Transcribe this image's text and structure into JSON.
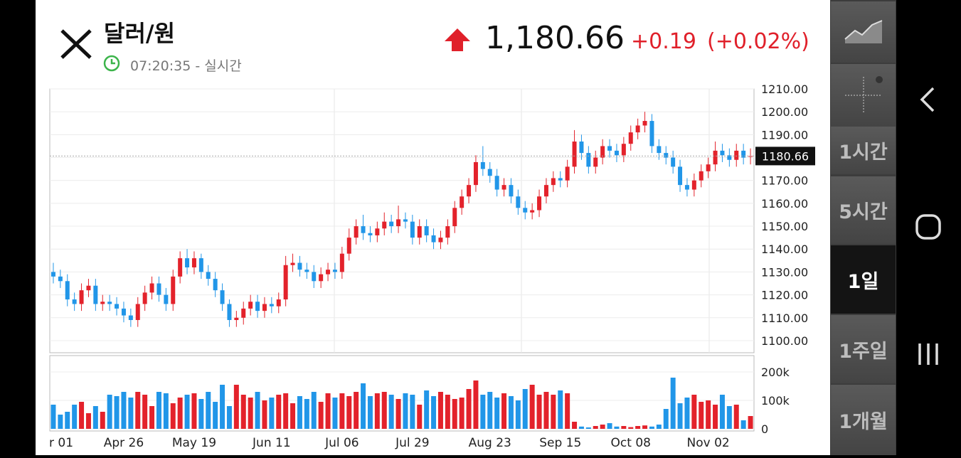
{
  "header": {
    "title": "달러/원",
    "time": "07:20:35 - 실시간",
    "price": "1,180.66",
    "change": "+0.19",
    "change_pct": "(+0.02%)"
  },
  "sidebar": {
    "items": [
      "1시간",
      "5시간",
      "1일",
      "1주일",
      "1개월"
    ],
    "selected_index": 2
  },
  "chart_data": [
    {
      "type": "candlestick",
      "up_color": "#e3222b",
      "down_color": "#2196e8",
      "grid": true,
      "categories": [
        "r 01",
        null,
        null,
        null,
        null,
        null,
        null,
        null,
        null,
        null,
        "Apr 26",
        null,
        null,
        null,
        null,
        null,
        null,
        null,
        null,
        null,
        "May 19",
        null,
        null,
        null,
        null,
        null,
        null,
        null,
        null,
        null,
        null,
        "Jun 11",
        null,
        null,
        null,
        null,
        null,
        null,
        null,
        null,
        null,
        "Jul 06",
        null,
        null,
        null,
        null,
        null,
        null,
        null,
        null,
        null,
        "Jul 29",
        null,
        null,
        null,
        null,
        null,
        null,
        null,
        null,
        null,
        null,
        "Aug 23",
        null,
        null,
        null,
        null,
        null,
        null,
        null,
        null,
        null,
        "Sep 15",
        null,
        null,
        null,
        null,
        null,
        null,
        null,
        null,
        null,
        "Oct 08",
        null,
        null,
        null,
        null,
        null,
        null,
        null,
        null,
        null,
        null,
        "Nov 02",
        null,
        null,
        null,
        null,
        null,
        null
      ],
      "open": [
        1130,
        1128,
        1126,
        1118,
        1116,
        1122,
        1124,
        1116,
        1117,
        1116,
        1114,
        1111,
        1109,
        1116,
        1121,
        1125,
        1120,
        1116,
        1128,
        1136,
        1132,
        1136,
        1130,
        1127,
        1122,
        1116,
        1109,
        1110,
        1114,
        1117,
        1113,
        1116,
        1115,
        1118,
        1133,
        1134,
        1131,
        1130,
        1126,
        1129,
        1131,
        1130,
        1138,
        1145,
        1150,
        1147,
        1146,
        1149,
        1152,
        1150,
        1153,
        1152,
        1145,
        1150,
        1146,
        1143,
        1145,
        1150,
        1158,
        1163,
        1168,
        1178,
        1175,
        1172,
        1166,
        1168,
        1163,
        1158,
        1156,
        1157,
        1163,
        1168,
        1171,
        1170,
        1176,
        1187,
        1182,
        1176,
        1180,
        1185,
        1183,
        1181,
        1186,
        1191,
        1194,
        1196,
        1185,
        1182,
        1180,
        1176,
        1168,
        1166,
        1170,
        1174,
        1177,
        1183,
        1181,
        1179,
        1183,
        1180.5
      ],
      "high": [
        1134,
        1131,
        1129,
        1121,
        1125,
        1127,
        1127,
        1120,
        1120,
        1119,
        1117,
        1114,
        1119,
        1124,
        1128,
        1128,
        1123,
        1131,
        1139,
        1140,
        1139,
        1138,
        1133,
        1130,
        1125,
        1118,
        1113,
        1117,
        1120,
        1120,
        1119,
        1119,
        1121,
        1137,
        1138,
        1137,
        1134,
        1133,
        1132,
        1134,
        1134,
        1141,
        1149,
        1153,
        1155,
        1150,
        1152,
        1156,
        1155,
        1159,
        1156,
        1155,
        1153,
        1153,
        1149,
        1148,
        1153,
        1161,
        1166,
        1171,
        1181,
        1185,
        1178,
        1175,
        1171,
        1171,
        1166,
        1161,
        1160,
        1166,
        1171,
        1174,
        1174,
        1179,
        1192,
        1190,
        1185,
        1183,
        1188,
        1188,
        1186,
        1189,
        1194,
        1197,
        1200,
        1199,
        1188,
        1185,
        1183,
        1179,
        1171,
        1173,
        1177,
        1180,
        1187,
        1186,
        1184,
        1186,
        1186,
        1184
      ],
      "low": [
        1125,
        1123,
        1115,
        1113,
        1113,
        1119,
        1113,
        1113,
        1113,
        1111,
        1108,
        1106,
        1106,
        1113,
        1118,
        1117,
        1113,
        1113,
        1125,
        1129,
        1129,
        1127,
        1124,
        1119,
        1113,
        1106,
        1106,
        1107,
        1111,
        1110,
        1110,
        1112,
        1112,
        1115,
        1130,
        1128,
        1127,
        1123,
        1123,
        1126,
        1127,
        1127,
        1135,
        1142,
        1144,
        1143,
        1143,
        1146,
        1147,
        1147,
        1149,
        1142,
        1142,
        1143,
        1140,
        1140,
        1142,
        1147,
        1155,
        1160,
        1165,
        1172,
        1169,
        1163,
        1163,
        1160,
        1155,
        1153,
        1153,
        1154,
        1160,
        1165,
        1167,
        1167,
        1173,
        1179,
        1173,
        1173,
        1177,
        1180,
        1178,
        1178,
        1183,
        1188,
        1191,
        1182,
        1179,
        1177,
        1173,
        1165,
        1163,
        1163,
        1167,
        1171,
        1174,
        1178,
        1176,
        1176,
        1177,
        1177
      ],
      "close": [
        1128,
        1126,
        1118,
        1116,
        1122,
        1124,
        1116,
        1117,
        1116,
        1114,
        1111,
        1109,
        1116,
        1121,
        1125,
        1120,
        1116,
        1128,
        1136,
        1132,
        1136,
        1130,
        1127,
        1122,
        1116,
        1109,
        1110,
        1114,
        1117,
        1113,
        1116,
        1115,
        1118,
        1133,
        1134,
        1131,
        1130,
        1126,
        1129,
        1131,
        1130,
        1138,
        1145,
        1150,
        1147,
        1146,
        1149,
        1152,
        1150,
        1153,
        1152,
        1145,
        1150,
        1146,
        1143,
        1145,
        1150,
        1158,
        1163,
        1168,
        1178,
        1175,
        1172,
        1166,
        1168,
        1163,
        1158,
        1156,
        1157,
        1163,
        1168,
        1171,
        1170,
        1176,
        1187,
        1182,
        1176,
        1180,
        1185,
        1183,
        1181,
        1186,
        1191,
        1194,
        1196,
        1185,
        1182,
        1180,
        1176,
        1168,
        1166,
        1170,
        1174,
        1177,
        1183,
        1181,
        1179,
        1183,
        1180,
        1180.66
      ],
      "current_price": 1180.66,
      "ylim": [
        1094.7,
        1210
      ],
      "yticks": [
        {
          "value": 1100,
          "label": "1100.00"
        },
        {
          "value": 1110,
          "label": "1110.00"
        },
        {
          "value": 1120,
          "label": "1120.00"
        },
        {
          "value": 1130,
          "label": "1130.00"
        },
        {
          "value": 1140,
          "label": "1140.00"
        },
        {
          "value": 1150,
          "label": "1150.00"
        },
        {
          "value": 1160,
          "label": "1160.00"
        },
        {
          "value": 1170,
          "label": "1170.00"
        },
        {
          "value": 1180,
          "label": "1180.00"
        },
        {
          "value": 1190,
          "label": "1190.00"
        },
        {
          "value": 1200,
          "label": "1200.00"
        },
        {
          "value": 1210,
          "label": "1210.00"
        }
      ]
    },
    {
      "type": "bar",
      "grid": true,
      "values": [
        85000,
        50000,
        60000,
        85000,
        95000,
        55000,
        80000,
        60000,
        120000,
        115000,
        130000,
        110000,
        130000,
        120000,
        80000,
        130000,
        125000,
        90000,
        110000,
        120000,
        125000,
        105000,
        130000,
        95000,
        155000,
        80000,
        155000,
        120000,
        110000,
        130000,
        100000,
        110000,
        120000,
        125000,
        90000,
        115000,
        105000,
        130000,
        95000,
        125000,
        110000,
        125000,
        115000,
        130000,
        160000,
        115000,
        125000,
        130000,
        120000,
        105000,
        125000,
        120000,
        85000,
        135000,
        115000,
        130000,
        120000,
        105000,
        110000,
        140000,
        170000,
        120000,
        130000,
        110000,
        125000,
        115000,
        100000,
        140000,
        155000,
        120000,
        130000,
        120000,
        135000,
        125000,
        25000,
        8000,
        5000,
        10000,
        15000,
        20000,
        8000,
        10000,
        6000,
        10000,
        12000,
        8000,
        15000,
        70000,
        180000,
        90000,
        110000,
        120000,
        95000,
        100000,
        85000,
        120000,
        80000,
        85000,
        30000,
        45000
      ],
      "ylim": [
        0,
        257500
      ],
      "yticks": [
        0,
        {
          "value": 100000,
          "label": "100k"
        },
        {
          "value": 200000,
          "label": "200k"
        }
      ]
    }
  ]
}
